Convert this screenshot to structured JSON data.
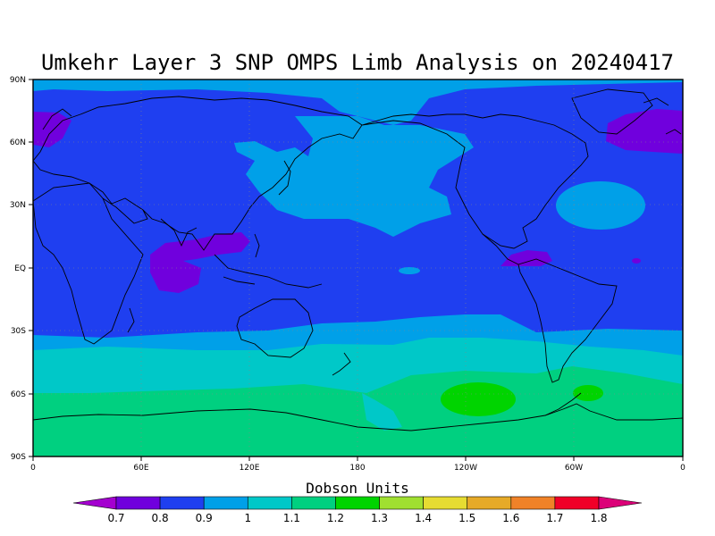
{
  "title": "Umkehr Layer 3 SNP OMPS Limb Analysis on 20240417",
  "colorbar": {
    "label": "Dobson Units",
    "ticks": [
      "0.7",
      "0.8",
      "0.9",
      "1",
      "1.1",
      "1.2",
      "1.3",
      "1.4",
      "1.5",
      "1.6",
      "1.7",
      "1.8"
    ],
    "colors": [
      "#a400d0",
      "#7000dd",
      "#1f3ff0",
      "#00a0e8",
      "#00c8c8",
      "#00d080",
      "#00d400",
      "#a0e030",
      "#e6dc32",
      "#e6aa28",
      "#f08228",
      "#f00028",
      "#dc0078"
    ]
  },
  "map": {
    "lon_labels": [
      "0",
      "60E",
      "120E",
      "180",
      "120W",
      "60W",
      "0"
    ],
    "lat_labels": [
      "90N",
      "60N",
      "30N",
      "EQ",
      "30S",
      "60S",
      "90S"
    ],
    "lon_range": [
      0,
      360
    ],
    "lat_range": [
      -90,
      90
    ],
    "grid": "dotted"
  }
}
